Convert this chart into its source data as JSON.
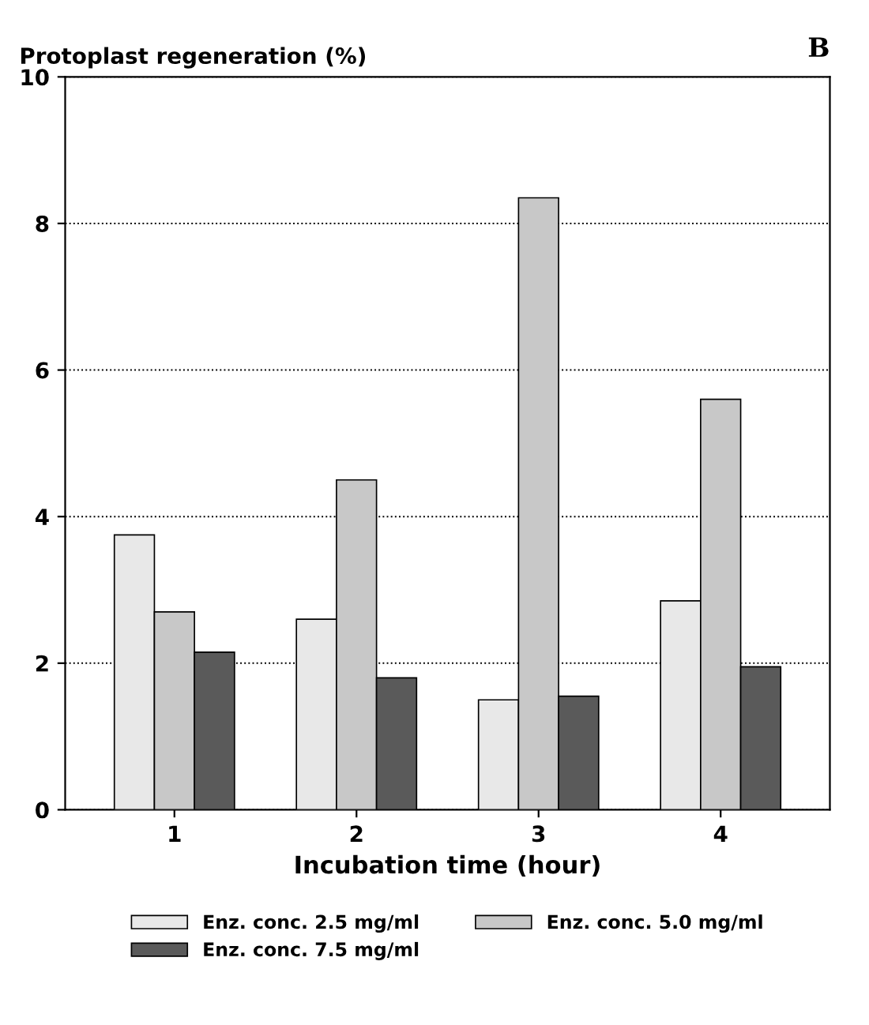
{
  "chart_data": {
    "type": "bar",
    "title": "Protoplast regeneration (%)",
    "xlabel": "Incubation time (hour)",
    "categories": [
      "1",
      "2",
      "3",
      "4"
    ],
    "series": [
      {
        "name": "Enz. conc. 2.5 mg/ml",
        "color": "#e8e8e8",
        "values": [
          3.75,
          2.6,
          1.5,
          2.85
        ]
      },
      {
        "name": "Enz. conc. 5.0 mg/ml",
        "color": "#c8c8c8",
        "values": [
          2.7,
          4.5,
          8.35,
          5.6
        ]
      },
      {
        "name": "Enz. conc. 7.5 mg/ml",
        "color": "#5a5a5a",
        "values": [
          2.15,
          1.8,
          1.55,
          1.95
        ]
      }
    ],
    "ylim": [
      0,
      10
    ],
    "yticks": [
      0,
      2,
      4,
      6,
      8,
      10
    ],
    "grid": "y",
    "legend": "bottom",
    "annotations": [
      "B"
    ]
  }
}
